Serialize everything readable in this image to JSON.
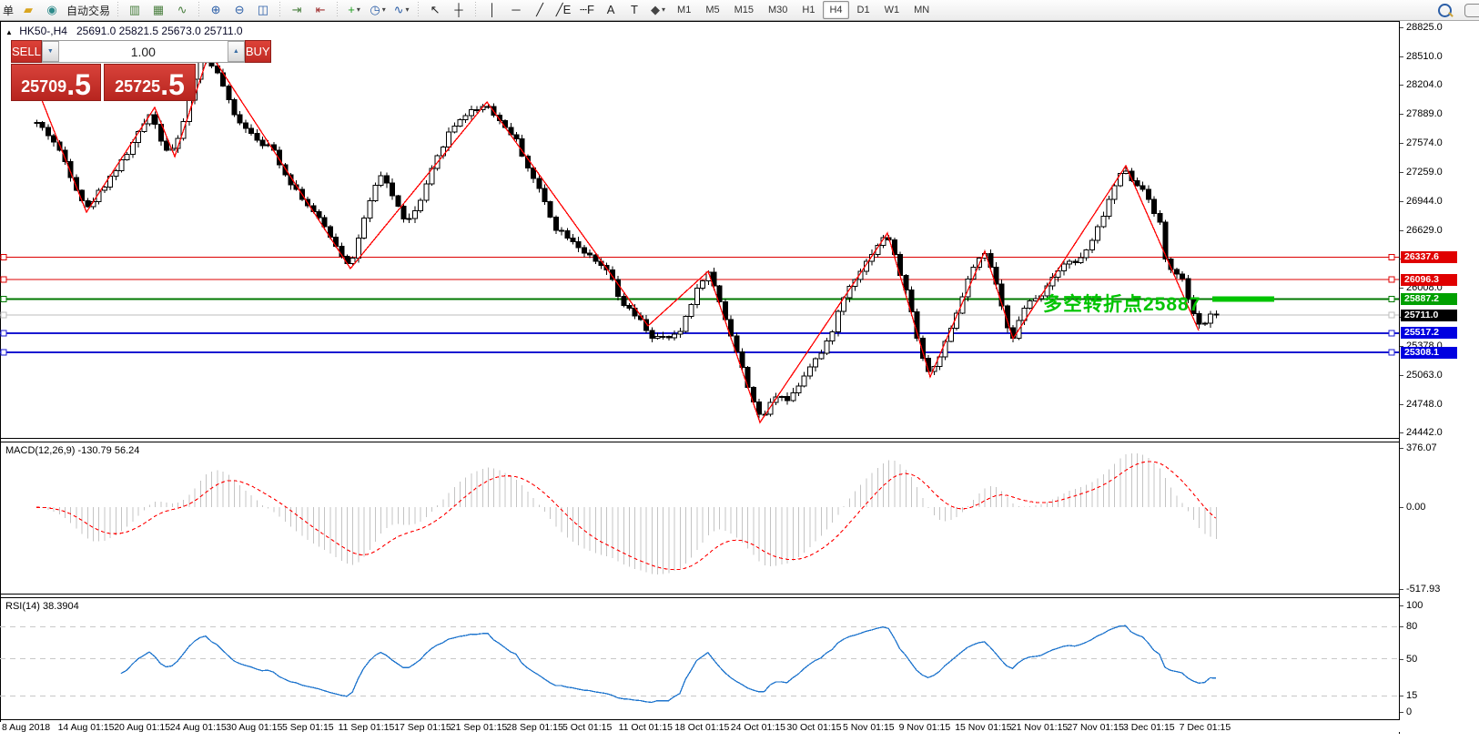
{
  "toolbar": {
    "orders_label": "单",
    "auto_trading_label": "自动交易",
    "buttons": [
      {
        "name": "chart-bars-icon",
        "glyph": "▥",
        "color": "#4a7f3f"
      },
      {
        "name": "chart-candles-icon",
        "glyph": "▦",
        "color": "#4a7f3f"
      },
      {
        "name": "chart-line-icon",
        "glyph": "∿",
        "color": "#4a7f3f"
      },
      {
        "name": "sep"
      },
      {
        "name": "zoom-in-icon",
        "glyph": "⊕",
        "color": "#2b5ea7"
      },
      {
        "name": "zoom-out-icon",
        "glyph": "⊖",
        "color": "#2b5ea7"
      },
      {
        "name": "tile-windows-icon",
        "glyph": "◫",
        "color": "#2b5ea7"
      },
      {
        "name": "sep"
      },
      {
        "name": "chart-shift-icon",
        "glyph": "⇥",
        "color": "#4a7f3f"
      },
      {
        "name": "auto-scroll-icon",
        "glyph": "⇤",
        "color": "#a03030"
      },
      {
        "name": "sep"
      },
      {
        "name": "new-order-icon",
        "glyph": "+",
        "color": "#1f9e1f",
        "dropdown": true
      },
      {
        "name": "period-clock-icon",
        "glyph": "◷",
        "color": "#2b5ea7",
        "dropdown": true
      },
      {
        "name": "indicators-icon",
        "glyph": "∿",
        "color": "#2b5ea7",
        "dropdown": true
      },
      {
        "name": "sep"
      },
      {
        "name": "cursor-icon",
        "glyph": "↖",
        "color": "#222222"
      },
      {
        "name": "crosshair-icon",
        "glyph": "┼",
        "color": "#222222"
      },
      {
        "name": "sep"
      },
      {
        "name": "vertical-line-icon",
        "glyph": "│",
        "color": "#222222"
      },
      {
        "name": "horizontal-line-icon",
        "glyph": "─",
        "color": "#222222"
      },
      {
        "name": "trendline-icon",
        "glyph": "╱",
        "color": "#222222"
      },
      {
        "name": "channel-icon",
        "glyph": "╱E",
        "color": "#222222"
      },
      {
        "name": "fibonacci-icon",
        "glyph": "┄F",
        "color": "#222222"
      },
      {
        "name": "text-icon",
        "glyph": "A",
        "color": "#222222"
      },
      {
        "name": "text-label-icon",
        "glyph": "T",
        "color": "#222222"
      },
      {
        "name": "shapes-icon",
        "glyph": "◆",
        "color": "#444444",
        "dropdown": true
      }
    ],
    "timeframes": [
      "M1",
      "M5",
      "M15",
      "M30",
      "H1",
      "H4",
      "D1",
      "W1",
      "MN"
    ],
    "active_timeframe": "H4"
  },
  "chart": {
    "title": {
      "symbol_period": "HK50-,H4",
      "ohlc": "25691.0 25821.5 25673.0 25711.0"
    },
    "trade_panel": {
      "sell_label": "SELL",
      "buy_label": "BUY",
      "volume": "1.00",
      "bid_main": "25709",
      "bid_pips": ".5",
      "ask_main": "25725",
      "ask_pips": ".5"
    }
  },
  "macd": {
    "label": "MACD(12,26,9) -130.79 56.24",
    "axis_labels": [
      "376.07",
      "0.00",
      "-517.93"
    ]
  },
  "rsi": {
    "label": "RSI(14) 38.3904",
    "axis_labels": [
      "100",
      "80",
      "50",
      "15",
      "0"
    ]
  },
  "chart_data": {
    "type": "candlestick",
    "symbol": "HK50-",
    "timeframe": "H4",
    "current_ohlc": {
      "open": 25691.0,
      "high": 25821.5,
      "low": 25673.0,
      "close": 25711.0
    },
    "bid": 25709.5,
    "ask": 25725.5,
    "ylim": [
      24442.0,
      28825.0
    ],
    "price_axis_ticks": [
      28825.0,
      28510.0,
      28204.0,
      27889.0,
      27574.0,
      27259.0,
      26944.0,
      26629.0,
      26323.0,
      26008.0,
      25693.0,
      25378.0,
      25063.0,
      24748.0,
      24442.0
    ],
    "x_labels": [
      "8 Aug 2018",
      "14 Aug 01:15",
      "20 Aug 01:15",
      "24 Aug 01:15",
      "30 Aug 01:15",
      "5 Sep 01:15",
      "11 Sep 01:15",
      "17 Sep 01:15",
      "21 Sep 01:15",
      "28 Sep 01:15",
      "5 Oct 01:15",
      "11 Oct 01:15",
      "18 Oct 01:15",
      "24 Oct 01:15",
      "30 Oct 01:15",
      "5 Nov 01:15",
      "9 Nov 01:15",
      "15 Nov 01:15",
      "21 Nov 01:15",
      "27 Nov 01:15",
      "3 Dec 01:15",
      "7 Dec 01:15"
    ],
    "horizontal_levels": [
      {
        "value": 26337.6,
        "color": "#dd0000",
        "label_bg": "#e00000",
        "thickness": 1
      },
      {
        "value": 26096.3,
        "color": "#dd0000",
        "label_bg": "#e00000",
        "thickness": 1
      },
      {
        "value": 25887.2,
        "color": "#007800",
        "label_bg": "#00a000",
        "thickness": 2
      },
      {
        "value": 25711.0,
        "color": "#bdbdbd",
        "label_bg": "#000000",
        "thickness": 1
      },
      {
        "value": 25517.2,
        "color": "#1a1ad1",
        "label_bg": "#0000e0",
        "thickness": 2
      },
      {
        "value": 25308.1,
        "color": "#1a1ad1",
        "label_bg": "#0000e0",
        "thickness": 2
      }
    ],
    "annotation": {
      "text": "多空转折点25887",
      "price": 25887.2,
      "color": "#00c400"
    },
    "zigzag_points": [
      [
        42,
        28136
      ],
      [
        95,
        26826
      ],
      [
        170,
        27958
      ],
      [
        192,
        27426
      ],
      [
        230,
        28559
      ],
      [
        385,
        26215
      ],
      [
        535,
        28017
      ],
      [
        712,
        25595
      ],
      [
        778,
        26185
      ],
      [
        835,
        24550
      ],
      [
        975,
        26599
      ],
      [
        1022,
        25043
      ],
      [
        1082,
        26402
      ],
      [
        1113,
        25457
      ],
      [
        1237,
        27328
      ],
      [
        1317,
        25545
      ]
    ],
    "price_path": [
      [
        40,
        27791
      ],
      [
        55,
        27643
      ],
      [
        70,
        27397
      ],
      [
        85,
        27052
      ],
      [
        95,
        26855
      ],
      [
        105,
        27003
      ],
      [
        120,
        27200
      ],
      [
        135,
        27397
      ],
      [
        150,
        27643
      ],
      [
        165,
        27919
      ],
      [
        175,
        27643
      ],
      [
        185,
        27466
      ],
      [
        195,
        27594
      ],
      [
        205,
        27939
      ],
      [
        215,
        28333
      ],
      [
        225,
        28549
      ],
      [
        235,
        28382
      ],
      [
        245,
        28185
      ],
      [
        255,
        27889
      ],
      [
        270,
        27742
      ],
      [
        285,
        27594
      ],
      [
        300,
        27495
      ],
      [
        315,
        27200
      ],
      [
        330,
        27003
      ],
      [
        345,
        26806
      ],
      [
        360,
        26609
      ],
      [
        375,
        26363
      ],
      [
        385,
        26245
      ],
      [
        395,
        26609
      ],
      [
        410,
        27052
      ],
      [
        420,
        27249
      ],
      [
        435,
        26904
      ],
      [
        447,
        26707
      ],
      [
        460,
        26904
      ],
      [
        475,
        27298
      ],
      [
        490,
        27643
      ],
      [
        505,
        27840
      ],
      [
        520,
        27939
      ],
      [
        535,
        27988
      ],
      [
        550,
        27791
      ],
      [
        565,
        27643
      ],
      [
        580,
        27298
      ],
      [
        595,
        27003
      ],
      [
        610,
        26658
      ],
      [
        625,
        26560
      ],
      [
        640,
        26412
      ],
      [
        655,
        26264
      ],
      [
        668,
        26185
      ],
      [
        680,
        25870
      ],
      [
        695,
        25723
      ],
      [
        705,
        25624
      ],
      [
        715,
        25476
      ],
      [
        730,
        25456
      ],
      [
        745,
        25496
      ],
      [
        760,
        25870
      ],
      [
        772,
        26117
      ],
      [
        778,
        26166
      ],
      [
        790,
        25870
      ],
      [
        800,
        25575
      ],
      [
        810,
        25279
      ],
      [
        820,
        24984
      ],
      [
        835,
        24570
      ],
      [
        845,
        24738
      ],
      [
        855,
        24885
      ],
      [
        865,
        24787
      ],
      [
        875,
        24935
      ],
      [
        890,
        25181
      ],
      [
        905,
        25329
      ],
      [
        915,
        25575
      ],
      [
        925,
        25870
      ],
      [
        935,
        26067
      ],
      [
        950,
        26264
      ],
      [
        962,
        26461
      ],
      [
        975,
        26579
      ],
      [
        985,
        26264
      ],
      [
        995,
        25969
      ],
      [
        1005,
        25575
      ],
      [
        1015,
        25181
      ],
      [
        1022,
        25063
      ],
      [
        1032,
        25279
      ],
      [
        1042,
        25476
      ],
      [
        1052,
        25772
      ],
      [
        1062,
        26067
      ],
      [
        1072,
        26264
      ],
      [
        1082,
        26382
      ],
      [
        1090,
        26166
      ],
      [
        1098,
        25870
      ],
      [
        1105,
        25624
      ],
      [
        1112,
        25476
      ],
      [
        1122,
        25723
      ],
      [
        1132,
        25870
      ],
      [
        1142,
        25920
      ],
      [
        1152,
        26067
      ],
      [
        1162,
        26215
      ],
      [
        1172,
        26313
      ],
      [
        1180,
        26264
      ],
      [
        1190,
        26362
      ],
      [
        1200,
        26510
      ],
      [
        1210,
        26756
      ],
      [
        1220,
        27003
      ],
      [
        1228,
        27200
      ],
      [
        1237,
        27298
      ],
      [
        1245,
        27151
      ],
      [
        1252,
        27052
      ],
      [
        1258,
        27101
      ],
      [
        1265,
        26855
      ],
      [
        1272,
        26806
      ],
      [
        1280,
        26313
      ],
      [
        1290,
        26166
      ],
      [
        1300,
        26067
      ],
      [
        1310,
        25723
      ],
      [
        1318,
        25575
      ],
      [
        1326,
        25673
      ],
      [
        1334,
        25723
      ],
      [
        1340,
        25752
      ]
    ],
    "macd": {
      "fast": 12,
      "slow": 26,
      "signal": 9,
      "display_values": [
        -130.79,
        56.24
      ],
      "axis_max": 376.07,
      "axis_min": -517.93
    },
    "rsi": {
      "period": 14,
      "value": 38.3904,
      "levels": [
        80,
        50,
        15
      ],
      "range": [
        0,
        100
      ]
    },
    "colors": {
      "bull_fill": "#ffffff",
      "bear_fill": "#000000",
      "wick": "#000000",
      "zigzag": "#ff0000",
      "macd_hist": "#c4c4c4",
      "macd_signal": "#ff0000",
      "rsi_line": "#1e74cd",
      "level_dash": "#c8c8c8"
    }
  }
}
